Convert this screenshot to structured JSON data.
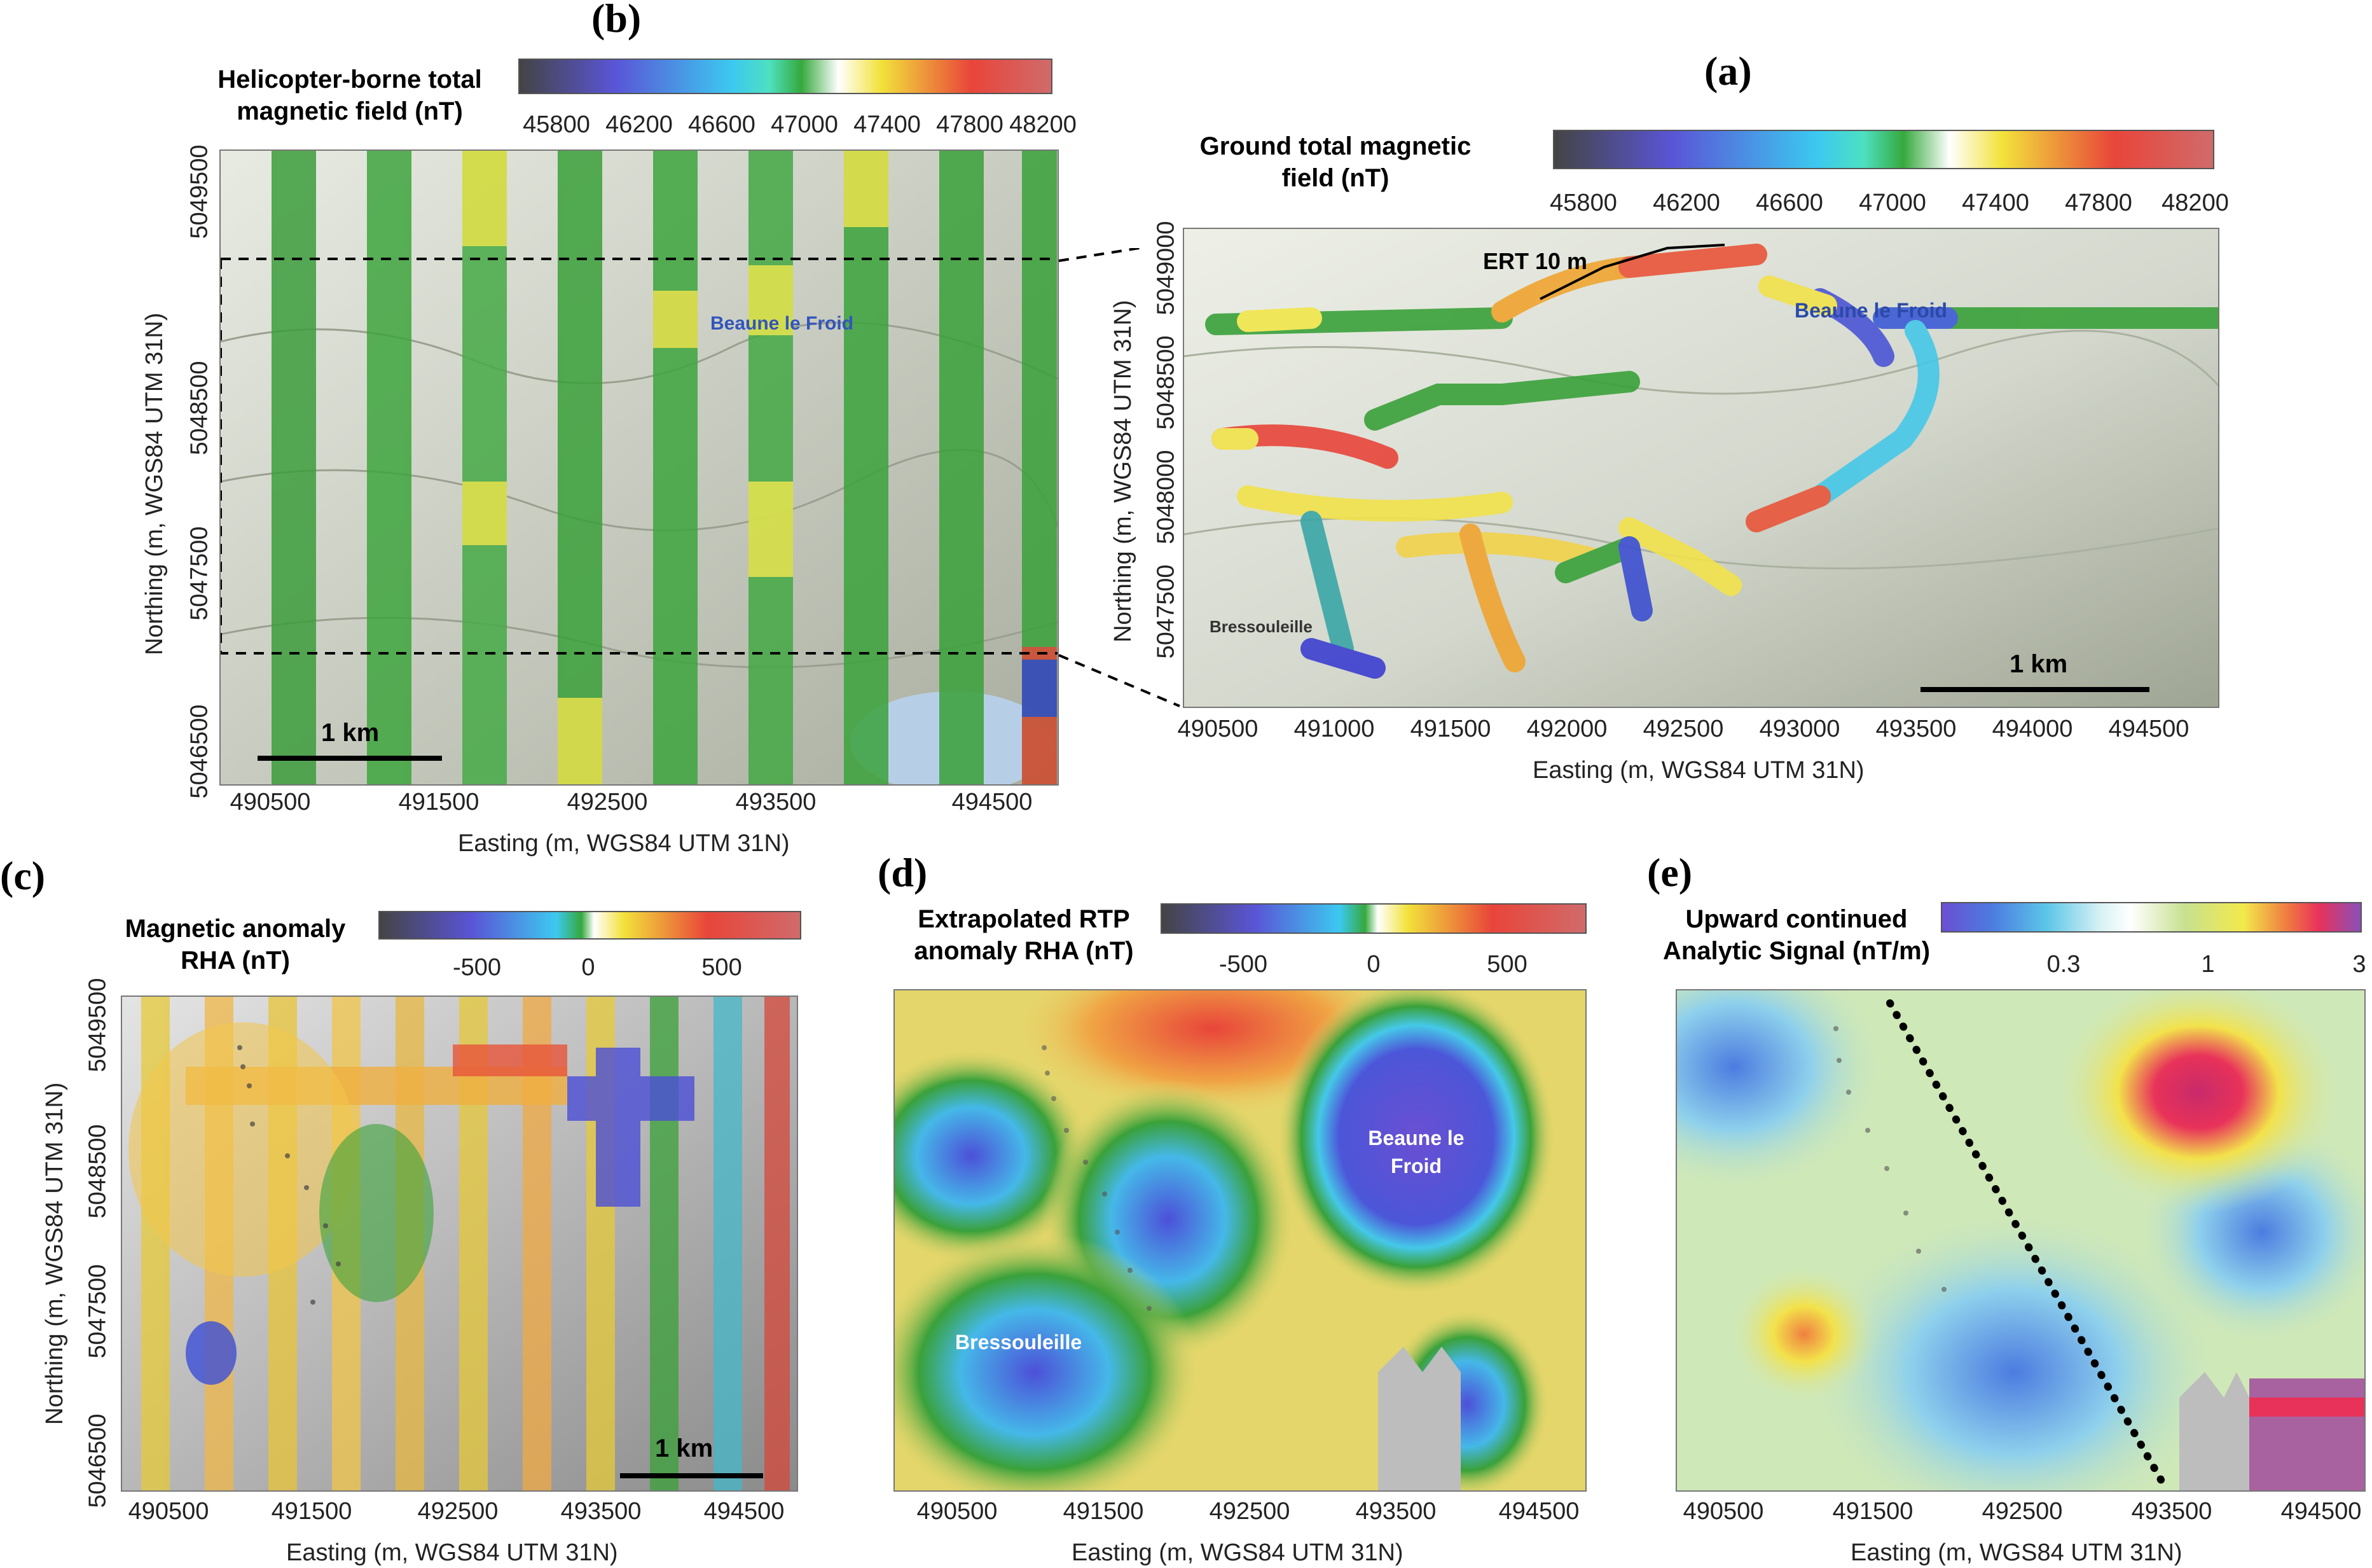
{
  "panels": {
    "b": {
      "letter": "(b)",
      "colorbar_title": "Helicopter-borne total magnetic field (nT)",
      "colorbar_ticks": [
        "45800",
        "46200",
        "46600",
        "47000",
        "47400",
        "47800",
        "48200"
      ],
      "colorbar_colors": [
        "#444444",
        "#5b55d8",
        "#3fc8f0",
        "#46d8c8",
        "#3fae3f",
        "#ffffff",
        "#f5e63a",
        "#e8453a",
        "#d26a6a"
      ],
      "x_ticks": [
        "490500",
        "491500",
        "492500",
        "493500",
        "494500"
      ],
      "y_ticks": [
        "5046500",
        "5047500",
        "5048500",
        "5049500"
      ],
      "xlabel": "Easting (m, WGS84 UTM 31N)",
      "ylabel": "Northing (m, WGS84 UTM 31N)",
      "scale_label": "1 km"
    },
    "a": {
      "letter": "(a)",
      "colorbar_title": "Ground total magnetic field (nT)",
      "colorbar_ticks": [
        "45800",
        "46200",
        "46600",
        "47000",
        "47400",
        "47800",
        "48200"
      ],
      "x_ticks": [
        "490500",
        "491000",
        "491500",
        "492000",
        "492500",
        "493000",
        "493500",
        "494000",
        "494500"
      ],
      "y_ticks": [
        "5047500",
        "5048000",
        "5048500",
        "5049000"
      ],
      "xlabel": "Easting (m, WGS84 UTM 31N)",
      "ylabel": "Northing (m, WGS84 UTM 31N)",
      "scale_label": "1 km",
      "ert_label": "ERT 10 m",
      "place_labels": [
        "Beaune le Froid",
        "Bressouleille"
      ]
    },
    "c": {
      "letter": "(c)",
      "colorbar_title": "Magnetic anomaly RHA (nT)",
      "colorbar_ticks": [
        "-500",
        "0",
        "500"
      ],
      "x_ticks": [
        "490500",
        "491500",
        "492500",
        "493500",
        "494500"
      ],
      "y_ticks": [
        "5046500",
        "5047500",
        "5048500",
        "5049500"
      ],
      "xlabel": "Easting (m, WGS84 UTM 31N)",
      "ylabel": "Northing (m, WGS84 UTM 31N)",
      "scale_label": "1 km"
    },
    "d": {
      "letter": "(d)",
      "colorbar_title": "Extrapolated RTP anomaly RHA (nT)",
      "colorbar_ticks": [
        "-500",
        "0",
        "500"
      ],
      "x_ticks": [
        "490500",
        "491500",
        "492500",
        "493500",
        "494500"
      ],
      "xlabel": "Easting (m, WGS84 UTM 31N)",
      "label_beaune": "Beaune le Froid",
      "label_bressouleille": "Bressouleille"
    },
    "e": {
      "letter": "(e)",
      "colorbar_title": "Upward continued Analytic Signal (nT/m)",
      "colorbar_ticks": [
        "0.3",
        "1",
        "3"
      ],
      "x_ticks": [
        "490500",
        "491500",
        "492500",
        "493500",
        "494500"
      ],
      "xlabel": "Easting (m, WGS84 UTM 31N)"
    }
  }
}
